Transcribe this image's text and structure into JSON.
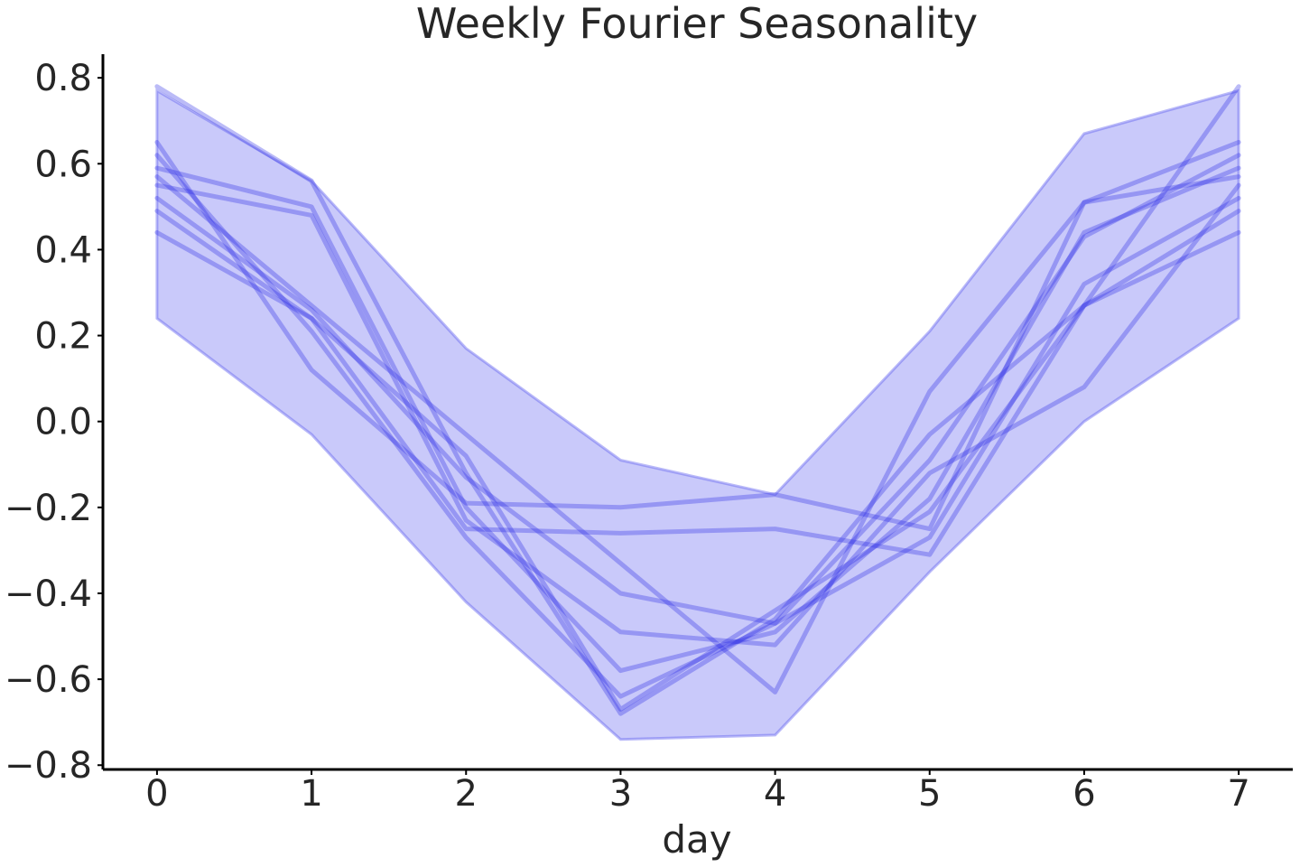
{
  "chart_data": {
    "type": "line",
    "title": "Weekly Fourier Seasonality",
    "xlabel": "day",
    "ylabel": "",
    "xlim": [
      -0.35,
      7.35
    ],
    "ylim": [
      -0.81,
      0.855
    ],
    "x": [
      0,
      1,
      2,
      3,
      4,
      5,
      6,
      7
    ],
    "xticks": [
      0,
      1,
      2,
      3,
      4,
      5,
      6,
      7
    ],
    "yticks": [
      -0.8,
      -0.6,
      -0.4,
      -0.2,
      0.0,
      0.2,
      0.4,
      0.6,
      0.8
    ],
    "ytick_labels": [
      "−0.8",
      "−0.6",
      "−0.4",
      "−0.2",
      "0.0",
      "0.2",
      "0.4",
      "0.6",
      "0.8"
    ],
    "grid": false,
    "band": {
      "upper": [
        0.77,
        0.56,
        0.17,
        -0.09,
        -0.17,
        0.21,
        0.67,
        0.77
      ],
      "lower": [
        0.24,
        -0.03,
        -0.42,
        -0.74,
        -0.73,
        -0.35,
        0.0,
        0.24
      ]
    },
    "series": [
      {
        "values": [
          0.78,
          0.56,
          -0.12,
          -0.68,
          -0.46,
          -0.03,
          0.27,
          0.78
        ]
      },
      {
        "values": [
          0.65,
          0.12,
          -0.19,
          -0.2,
          -0.17,
          -0.25,
          0.51,
          0.65
        ]
      },
      {
        "values": [
          0.62,
          0.21,
          -0.27,
          -0.64,
          -0.47,
          -0.09,
          0.43,
          0.62
        ]
      },
      {
        "values": [
          0.59,
          0.5,
          -0.2,
          -0.58,
          -0.49,
          -0.18,
          0.44,
          0.59
        ]
      },
      {
        "values": [
          0.57,
          0.27,
          -0.03,
          -0.33,
          -0.63,
          0.07,
          0.51,
          0.57
        ]
      },
      {
        "values": [
          0.55,
          0.48,
          -0.23,
          -0.49,
          -0.52,
          -0.12,
          0.08,
          0.55
        ]
      },
      {
        "values": [
          0.52,
          0.26,
          -0.13,
          -0.4,
          -0.47,
          -0.27,
          0.32,
          0.52
        ]
      },
      {
        "values": [
          0.49,
          0.24,
          -0.08,
          -0.67,
          -0.44,
          -0.21,
          0.27,
          0.49
        ]
      },
      {
        "values": [
          0.44,
          0.24,
          -0.25,
          -0.26,
          -0.25,
          -0.31,
          0.27,
          0.44
        ]
      }
    ],
    "colors": {
      "line": "#2c2ce6",
      "band": "#6464f0",
      "text": "#262626"
    }
  }
}
